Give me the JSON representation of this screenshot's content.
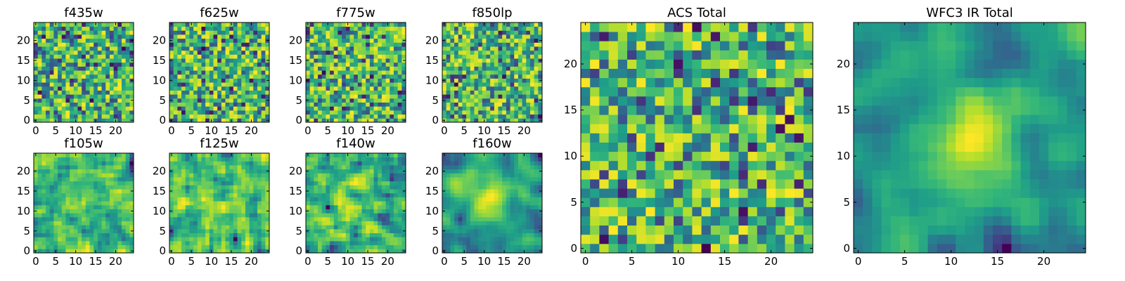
{
  "figure": {
    "background": "#ffffff"
  },
  "chart_data": [
    {
      "type": "heatmap",
      "title": "f435w",
      "grid": false,
      "xlim": [
        -0.5,
        24.5
      ],
      "ylim": [
        -0.5,
        24.5
      ],
      "xticks": [
        0,
        5,
        10,
        15,
        20
      ],
      "yticks": [
        0,
        5,
        10,
        15,
        20
      ],
      "xticklabels": [
        "0",
        "5",
        "10",
        "15",
        "20"
      ],
      "yticklabels": [
        "0",
        "5",
        "10",
        "15",
        "20"
      ],
      "cells": [
        25,
        25
      ],
      "colormap": "viridis",
      "seed": 11,
      "smooth": 0
    },
    {
      "type": "heatmap",
      "title": "f625w",
      "grid": false,
      "xlim": [
        -0.5,
        24.5
      ],
      "ylim": [
        -0.5,
        24.5
      ],
      "xticks": [
        0,
        5,
        10,
        15,
        20
      ],
      "yticks": [
        0,
        5,
        10,
        15,
        20
      ],
      "xticklabels": [
        "0",
        "5",
        "10",
        "15",
        "20"
      ],
      "yticklabels": [
        "0",
        "5",
        "10",
        "15",
        "20"
      ],
      "cells": [
        25,
        25
      ],
      "colormap": "viridis",
      "seed": 23,
      "smooth": 0
    },
    {
      "type": "heatmap",
      "title": "f775w",
      "grid": false,
      "xlim": [
        -0.5,
        24.5
      ],
      "ylim": [
        -0.5,
        24.5
      ],
      "xticks": [
        0,
        5,
        10,
        15,
        20
      ],
      "yticks": [
        0,
        5,
        10,
        15,
        20
      ],
      "xticklabels": [
        "0",
        "5",
        "10",
        "15",
        "20"
      ],
      "yticklabels": [
        "0",
        "5",
        "10",
        "15",
        "20"
      ],
      "cells": [
        25,
        25
      ],
      "colormap": "viridis",
      "seed": 37,
      "smooth": 0
    },
    {
      "type": "heatmap",
      "title": "f850lp",
      "grid": false,
      "xlim": [
        -0.5,
        24.5
      ],
      "ylim": [
        -0.5,
        24.5
      ],
      "xticks": [
        0,
        5,
        10,
        15,
        20
      ],
      "yticks": [
        0,
        5,
        10,
        15,
        20
      ],
      "xticklabels": [
        "0",
        "5",
        "10",
        "15",
        "20"
      ],
      "yticklabels": [
        "0",
        "5",
        "10",
        "15",
        "20"
      ],
      "cells": [
        25,
        25
      ],
      "colormap": "viridis",
      "seed": 41,
      "smooth": 0
    },
    {
      "type": "heatmap",
      "title": "f105w",
      "grid": false,
      "xlim": [
        -0.5,
        24.5
      ],
      "ylim": [
        -0.5,
        24.5
      ],
      "xticks": [
        0,
        5,
        10,
        15,
        20
      ],
      "yticks": [
        0,
        5,
        10,
        15,
        20
      ],
      "xticklabels": [
        "0",
        "5",
        "10",
        "15",
        "20"
      ],
      "yticklabels": [
        "0",
        "5",
        "10",
        "15",
        "20"
      ],
      "cells": [
        25,
        25
      ],
      "colormap": "viridis",
      "seed": 53,
      "smooth": 1
    },
    {
      "type": "heatmap",
      "title": "f125w",
      "grid": false,
      "xlim": [
        -0.5,
        24.5
      ],
      "ylim": [
        -0.5,
        24.5
      ],
      "xticks": [
        0,
        5,
        10,
        15,
        20
      ],
      "yticks": [
        0,
        5,
        10,
        15,
        20
      ],
      "xticklabels": [
        "0",
        "5",
        "10",
        "15",
        "20"
      ],
      "yticklabels": [
        "0",
        "5",
        "10",
        "15",
        "20"
      ],
      "cells": [
        25,
        25
      ],
      "colormap": "viridis",
      "seed": 67,
      "smooth": 1
    },
    {
      "type": "heatmap",
      "title": "f140w",
      "grid": false,
      "xlim": [
        -0.5,
        24.5
      ],
      "ylim": [
        -0.5,
        24.5
      ],
      "xticks": [
        0,
        5,
        10,
        15,
        20
      ],
      "yticks": [
        0,
        5,
        10,
        15,
        20
      ],
      "xticklabels": [
        "0",
        "5",
        "10",
        "15",
        "20"
      ],
      "yticklabels": [
        "0",
        "5",
        "10",
        "15",
        "20"
      ],
      "cells": [
        25,
        25
      ],
      "colormap": "viridis",
      "seed": 71,
      "smooth": 1
    },
    {
      "type": "heatmap",
      "title": "f160w",
      "grid": false,
      "xlim": [
        -0.5,
        24.5
      ],
      "ylim": [
        -0.5,
        24.5
      ],
      "xticks": [
        0,
        5,
        10,
        15,
        20
      ],
      "yticks": [
        0,
        5,
        10,
        15,
        20
      ],
      "xticklabels": [
        "0",
        "5",
        "10",
        "15",
        "20"
      ],
      "yticklabels": [
        "0",
        "5",
        "10",
        "15",
        "20"
      ],
      "cells": [
        25,
        25
      ],
      "colormap": "viridis",
      "seed": 83,
      "smooth": 2
    },
    {
      "type": "heatmap",
      "title": "ACS Total",
      "grid": false,
      "xlim": [
        -0.5,
        24.5
      ],
      "ylim": [
        -0.5,
        24.5
      ],
      "xticks": [
        0,
        5,
        10,
        15,
        20
      ],
      "yticks": [
        0,
        5,
        10,
        15,
        20
      ],
      "xticklabels": [
        "0",
        "5",
        "10",
        "15",
        "20"
      ],
      "yticklabels": [
        "0",
        "5",
        "10",
        "15",
        "20"
      ],
      "cells": [
        25,
        25
      ],
      "colormap": "viridis",
      "seed": 97,
      "smooth": 0
    },
    {
      "type": "heatmap",
      "title": "WFC3 IR Total",
      "grid": false,
      "xlim": [
        -0.5,
        24.5
      ],
      "ylim": [
        -0.5,
        24.5
      ],
      "xticks": [
        0,
        5,
        10,
        15,
        20
      ],
      "yticks": [
        0,
        5,
        10,
        15,
        20
      ],
      "xticklabels": [
        "0",
        "5",
        "10",
        "15",
        "20"
      ],
      "yticklabels": [
        "0",
        "5",
        "10",
        "15",
        "20"
      ],
      "cells": [
        25,
        25
      ],
      "colormap": "viridis",
      "seed": 101,
      "smooth": 2
    }
  ]
}
